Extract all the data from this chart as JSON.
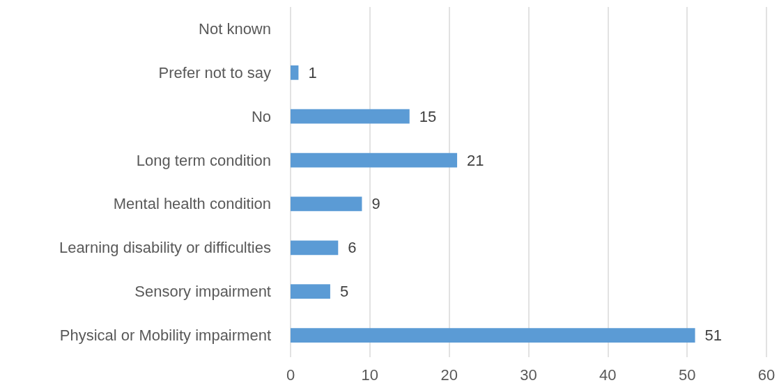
{
  "chart_data": {
    "type": "bar",
    "orientation": "horizontal",
    "categories": [
      "Not known",
      "Prefer not to say",
      "No",
      "Long term condition",
      "Mental health condition",
      "Learning disability or difficulties",
      "Sensory impairment",
      "Physical or Mobility impairment"
    ],
    "values": [
      null,
      1,
      15,
      21,
      9,
      6,
      5,
      51
    ],
    "color": "#5b9bd5",
    "xlim": [
      0,
      60
    ],
    "xticks": [
      0,
      10,
      20,
      30,
      40,
      50,
      60
    ],
    "grid": "x",
    "data_labels": true
  }
}
